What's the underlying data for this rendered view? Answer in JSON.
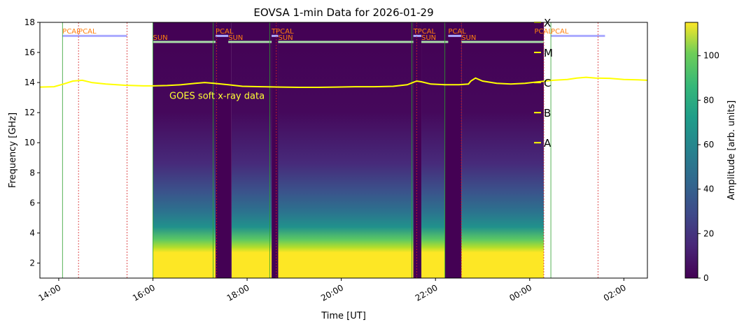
{
  "chart_data": {
    "type": "heatmap",
    "title": "EOVSA 1-min Data for 2026-01-29",
    "xlabel": "Time [UT]",
    "ylabel": "Frequency [GHz]",
    "colorbar_label": "Amplitude [arb. units]",
    "colormap": "viridis",
    "xlim_hours": [
      13.6,
      26.5
    ],
    "ylim": [
      1,
      18
    ],
    "colorbar_range": [
      0,
      115
    ],
    "x_ticks": [
      {
        "hour": 14,
        "label": "14:00"
      },
      {
        "hour": 16,
        "label": "16:00"
      },
      {
        "hour": 18,
        "label": "18:00"
      },
      {
        "hour": 20,
        "label": "20:00"
      },
      {
        "hour": 22,
        "label": "22:00"
      },
      {
        "hour": 24,
        "label": "00:00"
      },
      {
        "hour": 26,
        "label": "02:00"
      }
    ],
    "y_ticks": [
      2,
      4,
      6,
      8,
      10,
      12,
      14,
      16,
      18
    ],
    "colorbar_ticks": [
      0,
      20,
      40,
      60,
      80,
      100
    ],
    "data_segments": [
      {
        "start": 16.0,
        "end": 17.33
      },
      {
        "start": 17.67,
        "end": 18.52
      },
      {
        "start": 18.66,
        "end": 21.53
      },
      {
        "start": 21.7,
        "end": 22.2
      },
      {
        "start": 22.55,
        "end": 24.3
      }
    ],
    "calibration_blocks": [
      {
        "start": 17.33,
        "end": 17.67
      },
      {
        "start": 18.52,
        "end": 18.66
      },
      {
        "start": 21.53,
        "end": 21.7
      },
      {
        "start": 22.2,
        "end": 22.55
      }
    ],
    "scan_labels": [
      {
        "text": "PCAL",
        "hour": 14.08,
        "freq": 17.2
      },
      {
        "text": "PCAL",
        "hour": 14.42,
        "freq": 17.2
      },
      {
        "text": "SUN",
        "hour": 16.0,
        "freq": 16.8
      },
      {
        "text": "PCAL",
        "hour": 17.33,
        "freq": 17.2
      },
      {
        "text": "SUN",
        "hour": 17.6,
        "freq": 16.8
      },
      {
        "text": "TPCAL",
        "hour": 18.52,
        "freq": 17.2
      },
      {
        "text": "SUN",
        "hour": 18.66,
        "freq": 16.8
      },
      {
        "text": "TPCAL",
        "hour": 21.53,
        "freq": 17.2
      },
      {
        "text": "SUN",
        "hour": 21.7,
        "freq": 16.8
      },
      {
        "text": "PCAL",
        "hour": 22.27,
        "freq": 17.2
      },
      {
        "text": "SUN",
        "hour": 22.55,
        "freq": 16.8
      },
      {
        "text": "PCAL",
        "hour": 24.1,
        "freq": 17.2
      },
      {
        "text": "PCAL",
        "hour": 24.45,
        "freq": 17.2
      }
    ],
    "scan_bars": [
      {
        "start": 14.08,
        "end": 15.45,
        "freq": 17.1,
        "color": "#aaaaff"
      },
      {
        "start": 24.45,
        "end": 25.6,
        "freq": 17.1,
        "color": "#aaaaff"
      },
      {
        "start": 16.0,
        "end": 17.33,
        "freq": 16.7,
        "color": "#aaddaa"
      },
      {
        "start": 17.33,
        "end": 17.6,
        "freq": 17.1,
        "color": "#aaaaff"
      },
      {
        "start": 17.6,
        "end": 18.52,
        "freq": 16.7,
        "color": "#aaddaa"
      },
      {
        "start": 18.52,
        "end": 18.66,
        "freq": 17.1,
        "color": "#aaaaff"
      },
      {
        "start": 18.66,
        "end": 21.53,
        "freq": 16.7,
        "color": "#aaddaa"
      },
      {
        "start": 21.53,
        "end": 21.7,
        "freq": 17.1,
        "color": "#aaaaff"
      },
      {
        "start": 21.7,
        "end": 22.27,
        "freq": 16.7,
        "color": "#aaddaa"
      },
      {
        "start": 22.27,
        "end": 22.55,
        "freq": 17.1,
        "color": "#aaaaff"
      },
      {
        "start": 22.55,
        "end": 24.3,
        "freq": 16.7,
        "color": "#aaddaa"
      }
    ],
    "green_lines": [
      14.08,
      16.0,
      17.28,
      18.48,
      21.5,
      22.2,
      24.45
    ],
    "red_lines": [
      14.42,
      15.45,
      17.35,
      18.62,
      21.6,
      22.55,
      24.3,
      25.45
    ],
    "goes_label": {
      "text": "GOES soft x-ray data",
      "hour": 16.35,
      "freq": 13.1
    },
    "goes_class_labels": [
      {
        "label": "X",
        "freq": 18.0
      },
      {
        "label": "M",
        "freq": 16.0
      },
      {
        "label": "C",
        "freq": 14.0
      },
      {
        "label": "B",
        "freq": 12.0
      },
      {
        "label": "A",
        "freq": 10.0
      }
    ],
    "goes_curve": {
      "color": "#ffff00",
      "hours": [
        13.6,
        13.9,
        14.1,
        14.3,
        14.5,
        14.7,
        15.0,
        15.4,
        15.8,
        16.0,
        16.3,
        16.6,
        16.9,
        17.1,
        17.3,
        17.6,
        17.9,
        18.3,
        18.7,
        19.1,
        19.5,
        19.9,
        20.3,
        20.7,
        21.1,
        21.4,
        21.6,
        21.7,
        21.9,
        22.2,
        22.5,
        22.7,
        22.75,
        22.85,
        23.0,
        23.3,
        23.6,
        23.9,
        24.2,
        24.5,
        24.8,
        25.0,
        25.2,
        25.4,
        25.7,
        26.0,
        26.3,
        26.5
      ],
      "values": [
        13.7,
        13.72,
        13.9,
        14.1,
        14.15,
        14.0,
        13.9,
        13.82,
        13.78,
        13.78,
        13.8,
        13.85,
        13.95,
        14.0,
        13.95,
        13.85,
        13.75,
        13.72,
        13.7,
        13.68,
        13.68,
        13.7,
        13.72,
        13.72,
        13.75,
        13.85,
        14.1,
        14.05,
        13.9,
        13.85,
        13.85,
        13.9,
        14.1,
        14.3,
        14.1,
        13.95,
        13.9,
        13.95,
        14.05,
        14.15,
        14.2,
        14.3,
        14.35,
        14.3,
        14.28,
        14.2,
        14.18,
        14.15
      ]
    }
  }
}
